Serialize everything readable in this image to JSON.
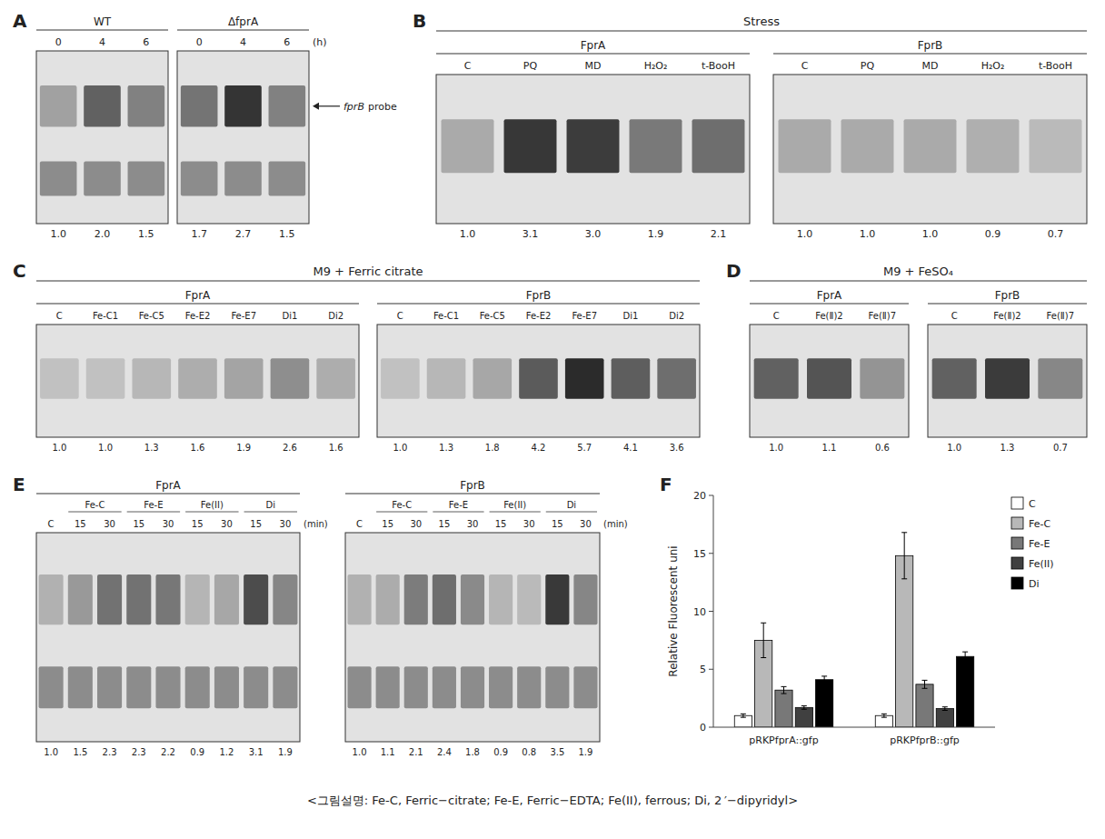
{
  "chart_data": [
    {
      "type": "gel",
      "title": "A",
      "xlabel": "(h)",
      "categories": [
        "0",
        "4",
        "6"
      ],
      "series": [
        {
          "name": "WT",
          "values": [
            1.0,
            2.0,
            1.5
          ],
          "value_labels": [
            "1.0",
            "2.0",
            "1.5"
          ]
        },
        {
          "name": "ΔfprA",
          "values": [
            1.7,
            2.7,
            1.5
          ],
          "value_labels": [
            "1.7",
            "2.7",
            "1.5"
          ]
        }
      ],
      "annotations": [
        "fprB",
        "probe"
      ],
      "clim": [
        0,
        3
      ],
      "data_labels": true
    },
    {
      "type": "gel",
      "title": "B",
      "subtitle": "Stress",
      "categories": [
        "C",
        "PQ",
        "MD",
        "H₂O₂",
        "t-BooH"
      ],
      "series": [
        {
          "name": "FprA",
          "values": [
            1.0,
            3.1,
            3.0,
            1.9,
            2.1
          ],
          "value_labels": [
            "1.0",
            "3.1",
            "3.0",
            "1.9",
            "2.1"
          ]
        },
        {
          "name": "FprB",
          "values": [
            1.0,
            1.0,
            1.0,
            0.9,
            0.7
          ],
          "value_labels": [
            "1.0",
            "1.0",
            "1.0",
            "0.9",
            "0.7"
          ]
        }
      ],
      "clim": [
        0,
        3.5
      ],
      "data_labels": true
    },
    {
      "type": "gel",
      "title": "C",
      "subtitle": "M9 + Ferric citrate",
      "categories": [
        "C",
        "Fe-C1",
        "Fe-C5",
        "Fe-E2",
        "Fe-E7",
        "Di1",
        "Di2"
      ],
      "series": [
        {
          "name": "FprA",
          "values": [
            1.0,
            1.0,
            1.3,
            1.6,
            1.9,
            2.6,
            1.6
          ],
          "value_labels": [
            "1.0",
            "1.0",
            "1.3",
            "1.6",
            "1.9",
            "2.6",
            "1.6"
          ]
        },
        {
          "name": "FprB",
          "values": [
            1.0,
            1.3,
            1.8,
            4.2,
            5.7,
            4.1,
            3.6
          ],
          "value_labels": [
            "1.0",
            "1.3",
            "1.8",
            "4.2",
            "5.7",
            "4.1",
            "3.6"
          ]
        }
      ],
      "clim": [
        0,
        6
      ],
      "data_labels": true
    },
    {
      "type": "gel",
      "title": "D",
      "subtitle": "M9 + FeSO₄",
      "categories": [
        "C",
        "Fe(Ⅱ)2",
        "Fe(Ⅱ)7"
      ],
      "series": [
        {
          "name": "FprA",
          "values": [
            1.0,
            1.1,
            0.6
          ],
          "value_labels": [
            "1.0",
            "1.1",
            "0.6"
          ]
        },
        {
          "name": "FprB",
          "values": [
            1.0,
            1.3,
            0.7
          ],
          "value_labels": [
            "1.0",
            "1.3",
            "0.7"
          ]
        }
      ],
      "clim": [
        0,
        1.5
      ],
      "data_labels": true
    },
    {
      "type": "gel",
      "title": "E",
      "xlabel": "(min)",
      "groups": [
        "Fe-C",
        "Fe-E",
        "Fe(II)",
        "Di"
      ],
      "categories": [
        "C",
        "15",
        "30",
        "15",
        "30",
        "15",
        "30",
        "15",
        "30"
      ],
      "series": [
        {
          "name": "FprA",
          "values": [
            1.0,
            1.5,
            2.3,
            2.3,
            2.2,
            0.9,
            1.2,
            3.1,
            1.9
          ],
          "value_labels": [
            "1.0",
            "1.5",
            "2.3",
            "2.3",
            "2.2",
            "0.9",
            "1.2",
            "3.1",
            "1.9"
          ]
        },
        {
          "name": "FprB",
          "values": [
            1.0,
            1.1,
            2.1,
            2.4,
            1.8,
            0.9,
            0.8,
            3.5,
            1.9
          ],
          "value_labels": [
            "1.0",
            "1.1",
            "2.1",
            "2.4",
            "1.8",
            "0.9",
            "0.8",
            "3.5",
            "1.9"
          ]
        }
      ],
      "clim": [
        0,
        4
      ],
      "data_labels": true
    },
    {
      "type": "bar",
      "title": "F",
      "ylabel": "Relative Fluorescent uni",
      "categories": [
        "pRKPfprA::gfp",
        "pRKPfprB::gfp"
      ],
      "series": [
        {
          "name": "C",
          "color": "#ffffff",
          "values": [
            1.0,
            1.0
          ],
          "errors": [
            0.15,
            0.15
          ]
        },
        {
          "name": "Fe-C",
          "color": "#b8b8b8",
          "values": [
            7.5,
            14.8
          ],
          "errors": [
            1.5,
            2.0
          ]
        },
        {
          "name": "Fe-E",
          "color": "#787878",
          "values": [
            3.2,
            3.7
          ],
          "errors": [
            0.3,
            0.35
          ]
        },
        {
          "name": "Fe(II)",
          "color": "#404040",
          "values": [
            1.7,
            1.6
          ],
          "errors": [
            0.15,
            0.15
          ]
        },
        {
          "name": "Di",
          "color": "#000000",
          "values": [
            4.1,
            6.1
          ],
          "errors": [
            0.3,
            0.4
          ]
        }
      ],
      "ylim": [
        0,
        20
      ],
      "yticks": [
        0,
        5,
        10,
        15,
        20
      ],
      "legend": "right"
    }
  ],
  "caption": "<그림설명: Fe-C, Ferric−citrate; Fe-E, Ferric−EDTA; Fe(II), ferrous; Di, 2 ′−dipyridyl>"
}
